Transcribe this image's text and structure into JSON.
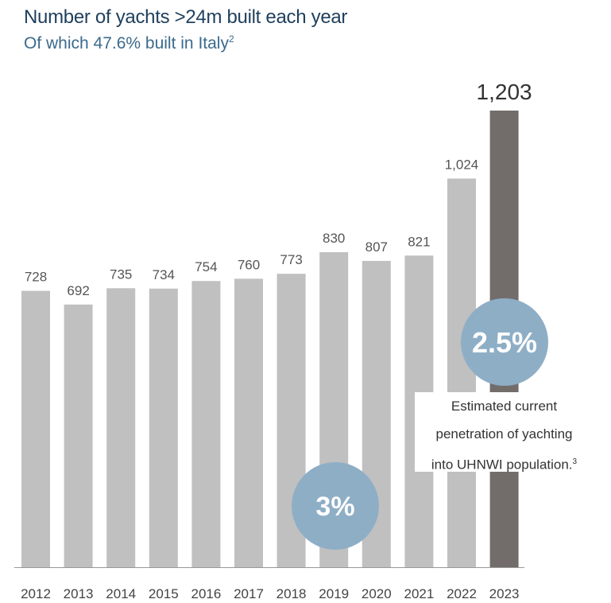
{
  "header": {
    "title": "Number of yachts >24m built each year",
    "subtitle": "Of which 47.6% built in Italy",
    "subtitle_sup": "2"
  },
  "chart_data": {
    "type": "bar",
    "categories": [
      "2012",
      "2013",
      "2014",
      "2015",
      "2016",
      "2017",
      "2018",
      "2019",
      "2020",
      "2021",
      "2022",
      "2023"
    ],
    "values": [
      728,
      692,
      735,
      734,
      754,
      760,
      773,
      830,
      807,
      821,
      1024,
      1203
    ],
    "value_labels": [
      "728",
      "692",
      "735",
      "734",
      "754",
      "760",
      "773",
      "830",
      "807",
      "821",
      "1,024",
      "1,203"
    ],
    "title": "Number of yachts >24m built each year",
    "subtitle": "Of which 47.6% built in Italy",
    "ylim": [
      0,
      1203
    ],
    "grid": false,
    "colors": {
      "default": "#c0c0c0",
      "highlight": "#726d6b"
    },
    "highlight_index": 11
  },
  "callouts": {
    "circle_large": "2.5%",
    "circle_small": "3%",
    "circle_color": "#8eaec6",
    "note_lines": [
      "Estimated current",
      "penetration of yachting",
      "into UHNWI population."
    ],
    "note_sup": "3"
  }
}
